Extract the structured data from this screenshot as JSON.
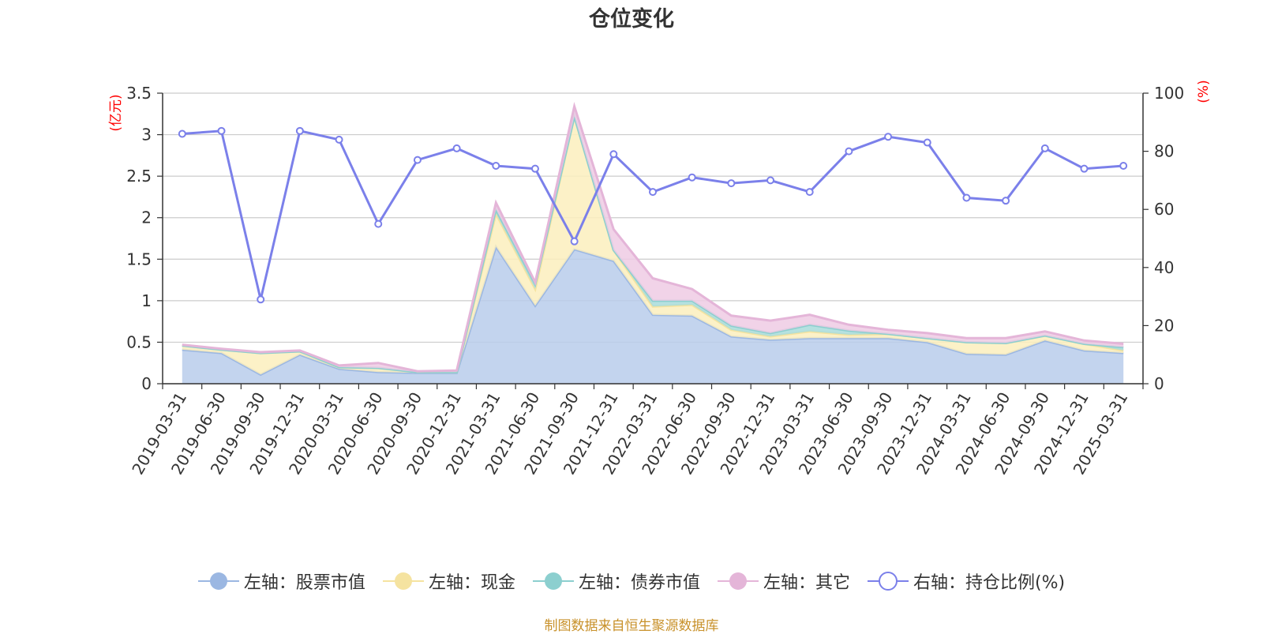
{
  "chart_data": {
    "type": "area",
    "title": "仓位变化",
    "categories": [
      "2019-03-31",
      "2019-06-30",
      "2019-09-30",
      "2019-12-31",
      "2020-03-31",
      "2020-06-30",
      "2020-09-30",
      "2020-12-31",
      "2021-03-31",
      "2021-06-30",
      "2021-09-30",
      "2021-12-31",
      "2022-03-31",
      "2022-06-30",
      "2022-09-30",
      "2022-12-31",
      "2023-03-31",
      "2023-06-30",
      "2023-09-30",
      "2023-12-31",
      "2024-03-31",
      "2024-06-30",
      "2024-09-30",
      "2024-12-31",
      "2025-03-31"
    ],
    "left_axis": {
      "unit": "(亿元)",
      "ylim": [
        0,
        3.5
      ],
      "ticks": [
        "0",
        "0.5",
        "1",
        "1.5",
        "2",
        "2.5",
        "3",
        "3.5"
      ]
    },
    "right_axis": {
      "unit": "(%)",
      "ylim": [
        0,
        100
      ],
      "ticks": [
        "0",
        "20",
        "40",
        "60",
        "80",
        "100"
      ]
    },
    "series": [
      {
        "name": "左轴：股票市值",
        "axis": "left",
        "kind": "stacked-area",
        "color": "#9bb7e2",
        "fill": "#b8cdeb",
        "values": [
          0.41,
          0.37,
          0.11,
          0.35,
          0.18,
          0.14,
          0.13,
          0.13,
          1.65,
          0.94,
          1.62,
          1.48,
          0.83,
          0.82,
          0.57,
          0.53,
          0.55,
          0.55,
          0.55,
          0.5,
          0.36,
          0.35,
          0.52,
          0.4,
          0.37
        ]
      },
      {
        "name": "左轴：现金",
        "axis": "left",
        "kind": "stacked-area",
        "color": "#f5e3a0",
        "fill": "#fbeebd",
        "values": [
          0.05,
          0.04,
          0.26,
          0.04,
          0.02,
          0.05,
          0.01,
          0.01,
          0.4,
          0.2,
          1.6,
          0.13,
          0.1,
          0.13,
          0.08,
          0.04,
          0.08,
          0.04,
          0.05,
          0.05,
          0.14,
          0.14,
          0.06,
          0.08,
          0.03
        ]
      },
      {
        "name": "左轴：债券市值",
        "axis": "left",
        "kind": "stacked-area",
        "color": "#8ccfcf",
        "fill": "#a8dcda",
        "values": [
          0,
          0,
          0,
          0,
          0,
          0,
          0,
          0,
          0.05,
          0.06,
          0,
          0,
          0.07,
          0.05,
          0.05,
          0.04,
          0.08,
          0.05,
          0,
          0,
          0,
          0,
          0,
          0,
          0.04
        ]
      },
      {
        "name": "左轴：其它",
        "axis": "left",
        "kind": "stacked-area",
        "color": "#e4b5d8",
        "fill": "#efcbe4",
        "values": [
          0.01,
          0.01,
          0.01,
          0.01,
          0.02,
          0.06,
          0.01,
          0.02,
          0.08,
          0.02,
          0.12,
          0.25,
          0.27,
          0.14,
          0.12,
          0.15,
          0.12,
          0.07,
          0.05,
          0.06,
          0.05,
          0.06,
          0.05,
          0.04,
          0.04
        ]
      },
      {
        "name": "右轴：持仓比例(%)",
        "axis": "right",
        "kind": "line",
        "color": "#7b80ea",
        "values": [
          86,
          87,
          29,
          87,
          84,
          55,
          77,
          81,
          75,
          74,
          49,
          79,
          66,
          71,
          69,
          70,
          66,
          80,
          85,
          83,
          64,
          63,
          81,
          74,
          75
        ]
      }
    ]
  },
  "source_note": "制图数据来自恒生聚源数据库"
}
